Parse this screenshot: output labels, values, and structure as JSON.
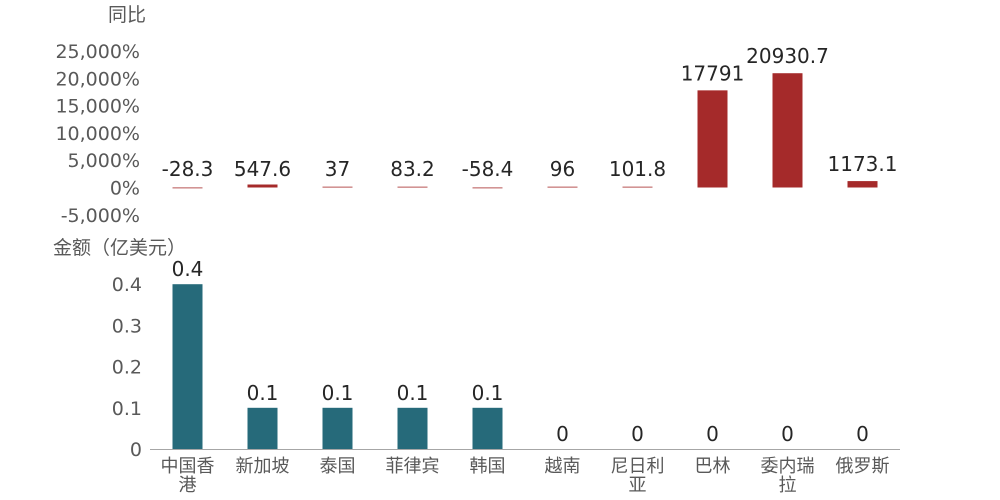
{
  "colors": {
    "top_bar": "#A52A2A",
    "bottom_bar": "#266A7A",
    "axis": "#A6A6A6",
    "text": "#595959"
  },
  "categories": [
    [
      "中国香",
      "港"
    ],
    [
      "新加坡"
    ],
    [
      "泰国"
    ],
    [
      "菲律宾"
    ],
    [
      "韩国"
    ],
    [
      "越南"
    ],
    [
      "尼日利",
      "亚"
    ],
    [
      "巴林"
    ],
    [
      "委内瑞",
      "拉"
    ],
    [
      "俄罗斯"
    ]
  ],
  "chart_data": [
    {
      "type": "bar",
      "ylabel": "同比",
      "ylim": [
        -5000,
        25000
      ],
      "yticks": [
        "25,000%",
        "20,000%",
        "15,000%",
        "10,000%",
        "5,000%",
        "0%",
        "-5,000%"
      ],
      "tick_values": [
        25000,
        20000,
        15000,
        10000,
        5000,
        0,
        -5000
      ],
      "values": [
        -28.3,
        547.6,
        37,
        83.2,
        -58.4,
        96,
        101.8,
        17791,
        20930.7,
        1173.1
      ],
      "data_labels": [
        "-28.3",
        "547.6",
        "37",
        "83.2",
        "-58.4",
        "96",
        "101.8",
        "17791",
        "20930.7",
        "1173.1"
      ]
    },
    {
      "type": "bar",
      "ylabel": "金额（亿美元）",
      "ylim": [
        0,
        0.4
      ],
      "yticks": [
        "0.4",
        "0.3",
        "0.2",
        "0.1",
        "0"
      ],
      "tick_values": [
        0.4,
        0.3,
        0.2,
        0.1,
        0
      ],
      "values": [
        0.4,
        0.1,
        0.1,
        0.1,
        0.1,
        0,
        0,
        0,
        0,
        0
      ],
      "data_labels": [
        "0.4",
        "0.1",
        "0.1",
        "0.1",
        "0.1",
        "0",
        "0",
        "0",
        "0",
        "0"
      ]
    }
  ]
}
